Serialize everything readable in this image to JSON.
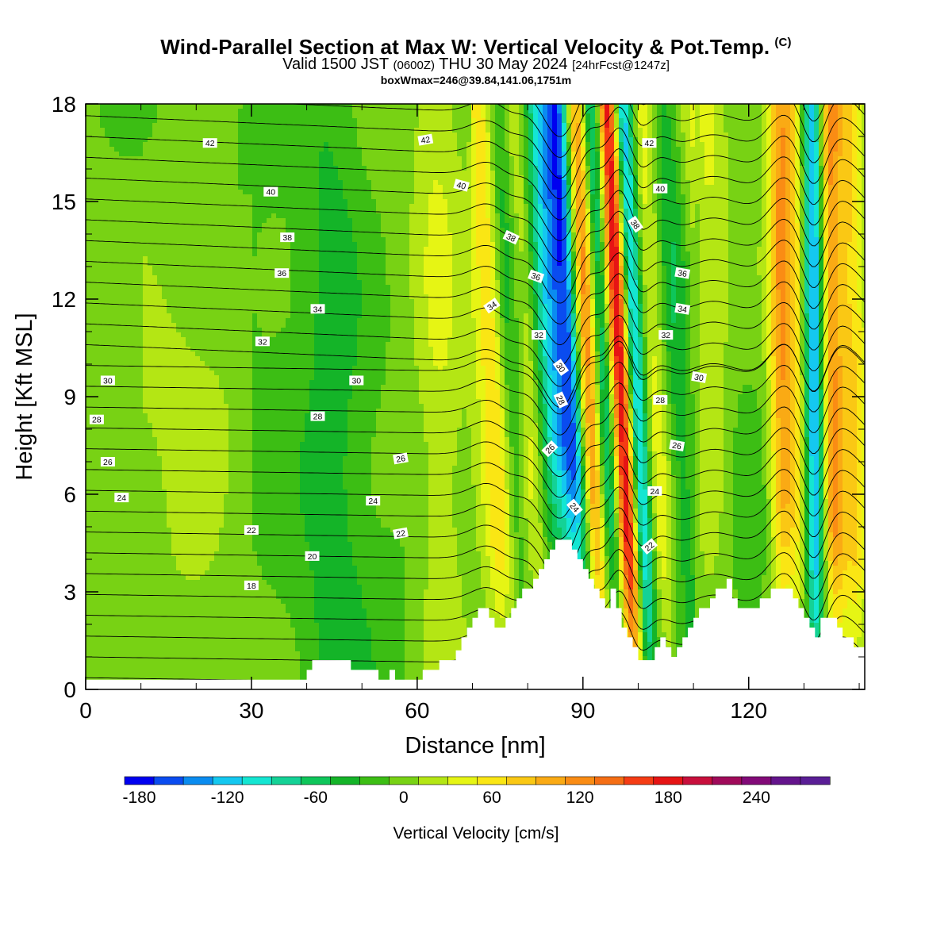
{
  "header": {
    "title": "Wind-Parallel Section at Max W: Vertical Velocity & Pot.Temp.",
    "title_mark": "(C)",
    "subtitle_prefix": "Valid 1500 JST",
    "subtitle_utc": "(0600Z)",
    "subtitle_date": "THU 30 May 2024",
    "subtitle_fcst": "[24hrFcst@1247z]",
    "box_info": "boxWmax=246@39.84,141.06,1751m"
  },
  "chart_data": {
    "type": "heatmap",
    "xlabel": "Distance [nm]",
    "ylabel": "Height [Kft MSL]",
    "xlim": [
      0,
      141
    ],
    "ylim": [
      0,
      18
    ],
    "x_ticks": [
      0,
      30,
      60,
      90,
      120
    ],
    "y_ticks": [
      0,
      3,
      6,
      9,
      12,
      15,
      18
    ],
    "colorbar": {
      "label": "Vertical Velocity [cm/s]",
      "range": [
        -190,
        290
      ],
      "step": 20,
      "tick_values": [
        -180,
        -120,
        -60,
        0,
        60,
        120,
        180,
        240
      ],
      "tick_labels": [
        "-180",
        "-120",
        "-60",
        "0",
        "60",
        "120",
        "180",
        "240"
      ],
      "colors": [
        "#0000f0",
        "#0a4cf0",
        "#0a8cf0",
        "#14c8f0",
        "#14e6d2",
        "#14d296",
        "#0ec65a",
        "#14b428",
        "#3cbe14",
        "#78d214",
        "#b4e614",
        "#e6f514",
        "#fae614",
        "#fac814",
        "#faaa14",
        "#fa8c14",
        "#f56e14",
        "#f53c14",
        "#e61414",
        "#c80f3c",
        "#a00a5a",
        "#820a78",
        "#64148c",
        "#5a1e96"
      ]
    },
    "vertical_velocity_bands": [
      {
        "x": 74,
        "w": 2.2,
        "v": 70
      },
      {
        "x": 77,
        "w": 1.6,
        "v": -60
      },
      {
        "x": 80,
        "w": 1.8,
        "v": 40
      },
      {
        "x": 84,
        "w": 1.8,
        "v": -80
      },
      {
        "x": 88,
        "w": 2.0,
        "v": -170
      },
      {
        "x": 91,
        "w": 1.6,
        "v": 190
      },
      {
        "x": 94,
        "w": 1.6,
        "v": -110
      },
      {
        "x": 97,
        "w": 1.5,
        "v": 246
      },
      {
        "x": 99.5,
        "w": 1.4,
        "v": -160
      },
      {
        "x": 103,
        "w": 2.2,
        "v": 60
      },
      {
        "x": 107,
        "w": 2.0,
        "v": -40
      },
      {
        "x": 113,
        "w": 2.5,
        "v": 40
      },
      {
        "x": 126,
        "w": 1.6,
        "v": 110
      },
      {
        "x": 129,
        "w": 1.4,
        "v": 50
      },
      {
        "x": 132,
        "w": 1.4,
        "v": -150
      },
      {
        "x": 135,
        "w": 1.6,
        "v": 120
      },
      {
        "x": 139,
        "w": 1.6,
        "v": 70
      },
      {
        "x": 20,
        "w": 6,
        "v": 10
      },
      {
        "x": 45,
        "w": 4,
        "v": -25
      },
      {
        "x": 64,
        "w": 3,
        "v": 30
      }
    ],
    "terrain": {
      "x": [
        0,
        39,
        40,
        41,
        42,
        47,
        48,
        52,
        53,
        54,
        55,
        56,
        57,
        60,
        61,
        62,
        64,
        66,
        67,
        68,
        69,
        70,
        71,
        72,
        73,
        74,
        75,
        76,
        77,
        78,
        79,
        80,
        81,
        82,
        83,
        84,
        85,
        86,
        87,
        88,
        89,
        90,
        91,
        92,
        93,
        94,
        95,
        96,
        97,
        98,
        99,
        100,
        101,
        102,
        103,
        104,
        105,
        106,
        107,
        108,
        109,
        110,
        111,
        112,
        113,
        114,
        115,
        116,
        117,
        118,
        119,
        120,
        121,
        122,
        123,
        124,
        125,
        126,
        127,
        128,
        129,
        130,
        131,
        132,
        133,
        134,
        135,
        136,
        137,
        138,
        139,
        140,
        141
      ],
      "h": [
        0.3,
        0.3,
        0.6,
        0.9,
        0.9,
        0.9,
        0.6,
        0.6,
        0.3,
        0.3,
        0.6,
        0.3,
        0.3,
        0.3,
        0.6,
        0.6,
        0.9,
        0.9,
        1.2,
        1.6,
        1.9,
        2.2,
        2.5,
        2.5,
        2.2,
        1.9,
        1.9,
        2.2,
        2.5,
        2.8,
        3.1,
        3.1,
        3.4,
        3.7,
        4.0,
        4.3,
        4.6,
        4.6,
        4.6,
        4.3,
        4.0,
        3.7,
        3.4,
        3.1,
        2.8,
        2.5,
        3.1,
        2.5,
        1.9,
        1.6,
        1.3,
        0.9,
        0.9,
        0.9,
        1.3,
        1.6,
        1.3,
        1.0,
        1.3,
        1.6,
        1.9,
        2.2,
        2.5,
        2.5,
        2.8,
        3.1,
        3.1,
        3.4,
        2.8,
        2.5,
        2.5,
        2.5,
        2.5,
        2.8,
        2.8,
        3.1,
        3.1,
        3.1,
        3.1,
        2.8,
        2.5,
        2.2,
        1.9,
        1.6,
        2.2,
        2.2,
        2.2,
        1.9,
        1.6,
        1.6,
        1.3,
        1.3,
        1.3
      ]
    },
    "theta_contour_levels": [
      14,
      15,
      16,
      17,
      18,
      19,
      20,
      21,
      22,
      23,
      24,
      25,
      26,
      27,
      28,
      29,
      30,
      31,
      32,
      33,
      34,
      35,
      36,
      37,
      38,
      39,
      40,
      41,
      42,
      43,
      44
    ],
    "theta_labels": [
      {
        "text": "42",
        "x": 22.5,
        "y": 16.8,
        "rot": 0
      },
      {
        "text": "40",
        "x": 33.5,
        "y": 15.3,
        "rot": 0
      },
      {
        "text": "38",
        "x": 36.5,
        "y": 13.9,
        "rot": 0
      },
      {
        "text": "36",
        "x": 35.5,
        "y": 12.8,
        "rot": 0
      },
      {
        "text": "34",
        "x": 42,
        "y": 11.7,
        "rot": 0
      },
      {
        "text": "32",
        "x": 32,
        "y": 10.7,
        "rot": 0
      },
      {
        "text": "30",
        "x": 4,
        "y": 9.5,
        "rot": 0
      },
      {
        "text": "28",
        "x": 2,
        "y": 8.3,
        "rot": 0
      },
      {
        "text": "26",
        "x": 4,
        "y": 7.0,
        "rot": 0
      },
      {
        "text": "24",
        "x": 6.5,
        "y": 5.9,
        "rot": 0
      },
      {
        "text": "22",
        "x": 30,
        "y": 4.9,
        "rot": 0
      },
      {
        "text": "20",
        "x": 41,
        "y": 4.1,
        "rot": 0
      },
      {
        "text": "18",
        "x": 30,
        "y": 3.2,
        "rot": 0
      },
      {
        "text": "30",
        "x": 49,
        "y": 9.5,
        "rot": 0
      },
      {
        "text": "28",
        "x": 42,
        "y": 8.4,
        "rot": 0
      },
      {
        "text": "26",
        "x": 57,
        "y": 7.1,
        "rot": -10
      },
      {
        "text": "24",
        "x": 52,
        "y": 5.8,
        "rot": 0
      },
      {
        "text": "22",
        "x": 57,
        "y": 4.8,
        "rot": -10
      },
      {
        "text": "42",
        "x": 61.5,
        "y": 16.9,
        "rot": -10
      },
      {
        "text": "40",
        "x": 68,
        "y": 15.5,
        "rot": 15
      },
      {
        "text": "38",
        "x": 77,
        "y": 13.9,
        "rot": 25
      },
      {
        "text": "36",
        "x": 81.5,
        "y": 12.7,
        "rot": 20
      },
      {
        "text": "34",
        "x": 73.5,
        "y": 11.8,
        "rot": -35
      },
      {
        "text": "32",
        "x": 82,
        "y": 10.9,
        "rot": 0
      },
      {
        "text": "30",
        "x": 86,
        "y": 9.9,
        "rot": 55
      },
      {
        "text": "28",
        "x": 86,
        "y": 8.9,
        "rot": 65
      },
      {
        "text": "26",
        "x": 84,
        "y": 7.4,
        "rot": -45
      },
      {
        "text": "24",
        "x": 88.5,
        "y": 5.6,
        "rot": 50
      },
      {
        "text": "38",
        "x": 99.5,
        "y": 14.3,
        "rot": 55
      },
      {
        "text": "42",
        "x": 102,
        "y": 16.8,
        "rot": 0
      },
      {
        "text": "40",
        "x": 104,
        "y": 15.4,
        "rot": 0
      },
      {
        "text": "36",
        "x": 108,
        "y": 12.8,
        "rot": 10
      },
      {
        "text": "34",
        "x": 108,
        "y": 11.7,
        "rot": 10
      },
      {
        "text": "32",
        "x": 105,
        "y": 10.9,
        "rot": 0
      },
      {
        "text": "30",
        "x": 111,
        "y": 9.6,
        "rot": 10
      },
      {
        "text": "28",
        "x": 104,
        "y": 8.9,
        "rot": 0
      },
      {
        "text": "26",
        "x": 107,
        "y": 7.5,
        "rot": 10
      },
      {
        "text": "24",
        "x": 103,
        "y": 6.1,
        "rot": 0
      },
      {
        "text": "22",
        "x": 102,
        "y": 4.4,
        "rot": -40
      }
    ]
  }
}
